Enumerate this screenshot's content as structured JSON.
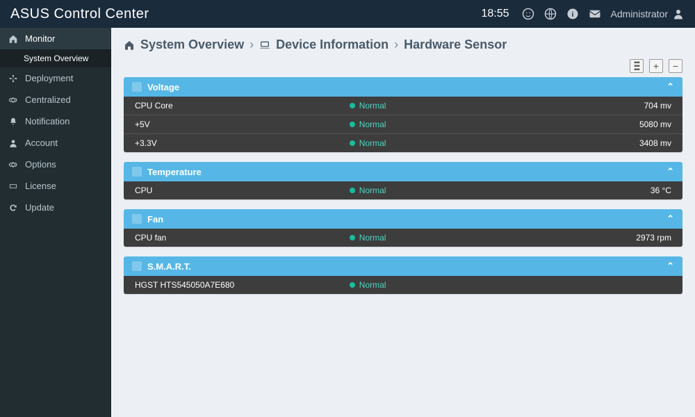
{
  "brand": "ASUS Control Center",
  "time": "18:55",
  "user": "Administrator",
  "sidebar": [
    {
      "label": "Monitor",
      "icon": "home",
      "active": true
    },
    {
      "label": "System Overview",
      "sub": true
    },
    {
      "label": "Deployment",
      "icon": "nodes"
    },
    {
      "label": "Centralized",
      "icon": "cog"
    },
    {
      "label": "Notification",
      "icon": "bell"
    },
    {
      "label": "Account",
      "icon": "user"
    },
    {
      "label": "Options",
      "icon": "cog"
    },
    {
      "label": "License",
      "icon": "ticket"
    },
    {
      "label": "Update",
      "icon": "refresh"
    }
  ],
  "crumbs": [
    "System Overview",
    "Device Information",
    "Hardware Sensor"
  ],
  "panels": [
    {
      "title": "Voltage",
      "rows": [
        {
          "label": "CPU Core",
          "status": "Normal",
          "value": "704 mv"
        },
        {
          "label": "+5V",
          "status": "Normal",
          "value": "5080 mv"
        },
        {
          "label": "+3.3V",
          "status": "Normal",
          "value": "3408 mv"
        }
      ]
    },
    {
      "title": "Temperature",
      "rows": [
        {
          "label": "CPU",
          "status": "Normal",
          "value": "36 °C"
        }
      ]
    },
    {
      "title": "Fan",
      "rows": [
        {
          "label": "CPU fan",
          "status": "Normal",
          "value": "2973 rpm"
        }
      ]
    },
    {
      "title": "S.M.A.R.T.",
      "rows": [
        {
          "label": "HGST HTS545050A7E680",
          "status": "Normal",
          "value": ""
        }
      ]
    }
  ]
}
